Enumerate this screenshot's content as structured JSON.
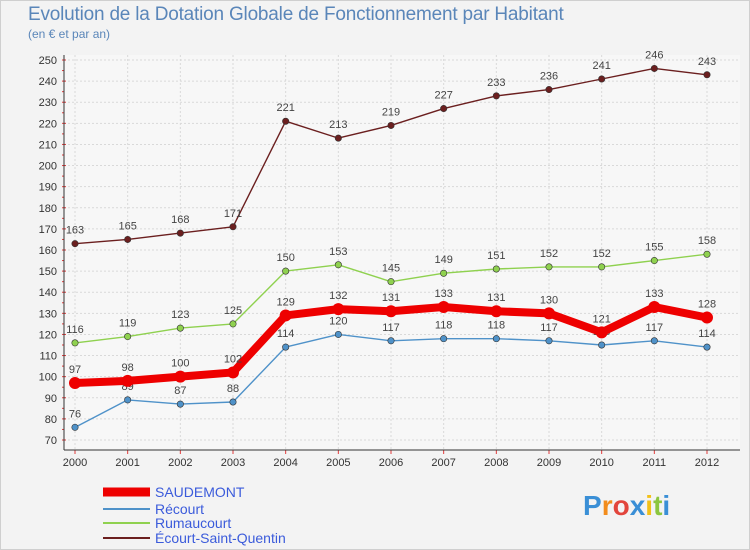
{
  "title": "Evolution de la Dotation Globale de Fonctionnement par Habitant",
  "subtitle": "(en € et par an)",
  "chart_data": {
    "type": "line",
    "title": "Evolution de la Dotation Globale de Fonctionnement par Habitant",
    "subtitle": "(en € et par an)",
    "x": [
      "2000",
      "2001",
      "2002",
      "2003",
      "2004",
      "2005",
      "2006",
      "2007",
      "2008",
      "2009",
      "2010",
      "2011",
      "2012"
    ],
    "ylim": [
      70,
      250
    ],
    "yticks": [
      70,
      80,
      90,
      100,
      110,
      120,
      130,
      140,
      150,
      160,
      170,
      180,
      190,
      200,
      210,
      220,
      230,
      240,
      250
    ],
    "grid": true,
    "legend": "bottom",
    "series": [
      {
        "name": "SAUDEMONT",
        "color": "#ee0000",
        "values": [
          97,
          98,
          100,
          102,
          129,
          132,
          131,
          133,
          131,
          130,
          121,
          133,
          128
        ]
      },
      {
        "name": "Récourt",
        "color": "#4f92c9",
        "values": [
          76,
          89,
          87,
          88,
          114,
          120,
          117,
          118,
          118,
          117,
          115,
          117,
          114
        ]
      },
      {
        "name": "Rumaucourt",
        "color": "#8fd14f",
        "values": [
          116,
          119,
          123,
          125,
          150,
          153,
          145,
          149,
          151,
          152,
          152,
          155,
          158
        ]
      },
      {
        "name": "Écourt-Saint-Quentin",
        "color": "#6b1f1f",
        "values": [
          163,
          165,
          168,
          171,
          221,
          213,
          219,
          227,
          233,
          236,
          241,
          246,
          243
        ]
      }
    ]
  },
  "logo": {
    "letters": [
      "P",
      "r",
      "o",
      "x",
      "i",
      "t",
      "i"
    ],
    "colors": [
      "#3a8fd6",
      "#f28c1c",
      "#e2453c",
      "#3a8fd6",
      "#f2c018",
      "#8cc63f",
      "#3a8fd6"
    ]
  }
}
